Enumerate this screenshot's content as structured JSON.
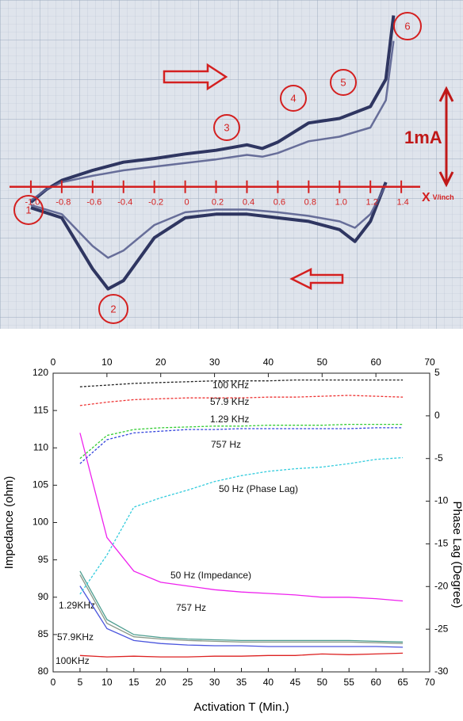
{
  "chart_data": [
    {
      "type": "line",
      "annotations": [
        "1",
        "2",
        "3",
        "4",
        "5",
        "6"
      ],
      "scale_label": "1mA",
      "xlabel": "X",
      "xunit": "V/inch",
      "xlim": [
        -1.2,
        1.8
      ],
      "ylim": [
        -1.55,
        2.05
      ],
      "xticks": [
        {
          "value": -1,
          "label": "-1.0"
        },
        {
          "value": -0.8,
          "label": "-0.8"
        },
        {
          "value": -0.6,
          "label": "-0.6"
        },
        {
          "value": -0.4,
          "label": "-0.4"
        },
        {
          "value": -0.2,
          "label": "-0.2"
        },
        0,
        0.2,
        0.4,
        0.6,
        0.8,
        {
          "value": 1,
          "label": "1.0"
        },
        1.2,
        1.4
      ],
      "series": [
        {
          "color": "#1c2252",
          "x": [
            -1.0,
            -0.9,
            -0.8,
            -0.6,
            -0.4,
            -0.2,
            0,
            0.2,
            0.4,
            0.5,
            0.6,
            0.8,
            1.0,
            1.2,
            1.3,
            1.35
          ],
          "values": [
            -0.17,
            -0.03,
            0.07,
            0.18,
            0.27,
            0.31,
            0.36,
            0.4,
            0.46,
            0.42,
            0.49,
            0.7,
            0.75,
            0.88,
            1.18,
            1.88
          ]
        },
        {
          "color": "#1c2252",
          "x": [
            1.3,
            1.2,
            1.1,
            1.0,
            0.8,
            0.6,
            0.4,
            0.2,
            0,
            -0.2,
            -0.4,
            -0.5,
            -0.6,
            -0.8,
            -1.0
          ],
          "values": [
            0.05,
            -0.38,
            -0.6,
            -0.47,
            -0.38,
            -0.34,
            -0.3,
            -0.3,
            -0.34,
            -0.56,
            -1.03,
            -1.12,
            -0.9,
            -0.34,
            -0.23
          ]
        },
        {
          "color": "#5a6190",
          "x": [
            -1.0,
            -0.9,
            -0.8,
            -0.6,
            -0.4,
            -0.2,
            0,
            0.2,
            0.4,
            0.5,
            0.6,
            0.8,
            1.0,
            1.2,
            1.3,
            1.35
          ],
          "values": [
            -0.15,
            -0.03,
            0.05,
            0.12,
            0.18,
            0.22,
            0.26,
            0.3,
            0.35,
            0.33,
            0.37,
            0.5,
            0.55,
            0.65,
            0.95,
            1.6
          ]
        },
        {
          "color": "#5a6190",
          "x": [
            1.3,
            1.2,
            1.1,
            1.0,
            0.8,
            0.6,
            0.4,
            0.2,
            0,
            -0.2,
            -0.4,
            -0.5,
            -0.6,
            -0.8,
            -1.0
          ],
          "values": [
            0.02,
            -0.3,
            -0.45,
            -0.38,
            -0.32,
            -0.28,
            -0.25,
            -0.25,
            -0.28,
            -0.42,
            -0.7,
            -0.78,
            -0.65,
            -0.3,
            -0.2
          ]
        }
      ]
    },
    {
      "type": "line",
      "xlabel": "Activation T (Min.)",
      "ylabel": "Impedance (ohm)",
      "y2label": "Phase Lag (Degree)",
      "xlim": [
        0,
        70
      ],
      "xticks": [
        0,
        5,
        10,
        15,
        20,
        25,
        30,
        35,
        40,
        45,
        50,
        55,
        60,
        65,
        70
      ],
      "x2lim": [
        0,
        70
      ],
      "x2ticks": [
        0,
        10,
        20,
        30,
        40,
        50,
        60,
        70
      ],
      "ylim": [
        80,
        120
      ],
      "yticks": [
        80,
        85,
        90,
        95,
        100,
        105,
        110,
        115,
        120
      ],
      "y2lim": [
        -30,
        5
      ],
      "y2ticks": [
        -30,
        -25,
        -20,
        -15,
        -10,
        -5,
        0,
        5
      ],
      "x": [
        5,
        10,
        15,
        20,
        25,
        30,
        35,
        40,
        45,
        50,
        55,
        60,
        65
      ],
      "series": [
        {
          "name": "50 Hz (Impedance)",
          "color": "#ee22ee",
          "values": [
            112,
            98,
            93.5,
            92,
            91.5,
            91,
            90.7,
            90.5,
            90.3,
            90,
            90,
            89.8,
            89.5
          ]
        },
        {
          "name": "1.29KHz",
          "color": "#4e9e90",
          "values": [
            93.5,
            87,
            85,
            84.6,
            84.4,
            84.3,
            84.2,
            84.2,
            84.2,
            84.2,
            84.2,
            84.1,
            84
          ]
        },
        {
          "name": "757 Hz",
          "color": "#8a9a8a",
          "values": [
            93,
            86.5,
            84.7,
            84.4,
            84.2,
            84.1,
            84,
            84,
            84,
            84,
            84,
            83.9,
            83.8
          ]
        },
        {
          "name": "57.9KHz",
          "color": "#4a55dd",
          "values": [
            91.5,
            85.8,
            84.2,
            83.8,
            83.6,
            83.5,
            83.5,
            83.4,
            83.4,
            83.4,
            83.4,
            83.4,
            83.3
          ]
        },
        {
          "name": "100KHz",
          "color": "#dd2222",
          "values": [
            82.2,
            82,
            82.1,
            82,
            82,
            82.1,
            82.1,
            82.2,
            82.2,
            82.4,
            82.3,
            82.4,
            82.5
          ]
        },
        {
          "name": "100 KHz",
          "color": "#222222",
          "style": "dashed",
          "axis": "y2",
          "values": [
            3.4,
            3.6,
            3.8,
            3.9,
            4.0,
            4.1,
            4.1,
            4.1,
            4.2,
            4.2,
            4.2,
            4.2,
            4.2
          ]
        },
        {
          "name": "57.9 KHz",
          "color": "#ee3333",
          "style": "dashed",
          "axis": "y2",
          "values": [
            1.2,
            1.6,
            1.9,
            2.0,
            2.1,
            2.1,
            2.1,
            2.2,
            2.2,
            2.3,
            2.4,
            2.3,
            2.2
          ]
        },
        {
          "name": "1.29 KHz",
          "color": "#33cc33",
          "style": "dashed",
          "axis": "y2",
          "values": [
            -5.0,
            -2.3,
            -1.6,
            -1.4,
            -1.3,
            -1.2,
            -1.2,
            -1.1,
            -1.1,
            -1.1,
            -1.0,
            -1.0,
            -1.0
          ]
        },
        {
          "name": "757 Hz",
          "color": "#3344dd",
          "style": "dashed",
          "axis": "y2",
          "values": [
            -5.6,
            -2.8,
            -2.0,
            -1.8,
            -1.6,
            -1.6,
            -1.5,
            -1.5,
            -1.5,
            -1.5,
            -1.5,
            -1.4,
            -1.4
          ]
        },
        {
          "name": "50 Hz (Phase Lag)",
          "color": "#33ccdd",
          "style": "dashed",
          "axis": "y2",
          "values": [
            -20.9,
            -16.3,
            -10.7,
            -9.6,
            -8.7,
            -7.7,
            -7.0,
            -6.5,
            -6.2,
            -6.0,
            -5.6,
            -5.1,
            -4.9
          ]
        }
      ]
    }
  ]
}
